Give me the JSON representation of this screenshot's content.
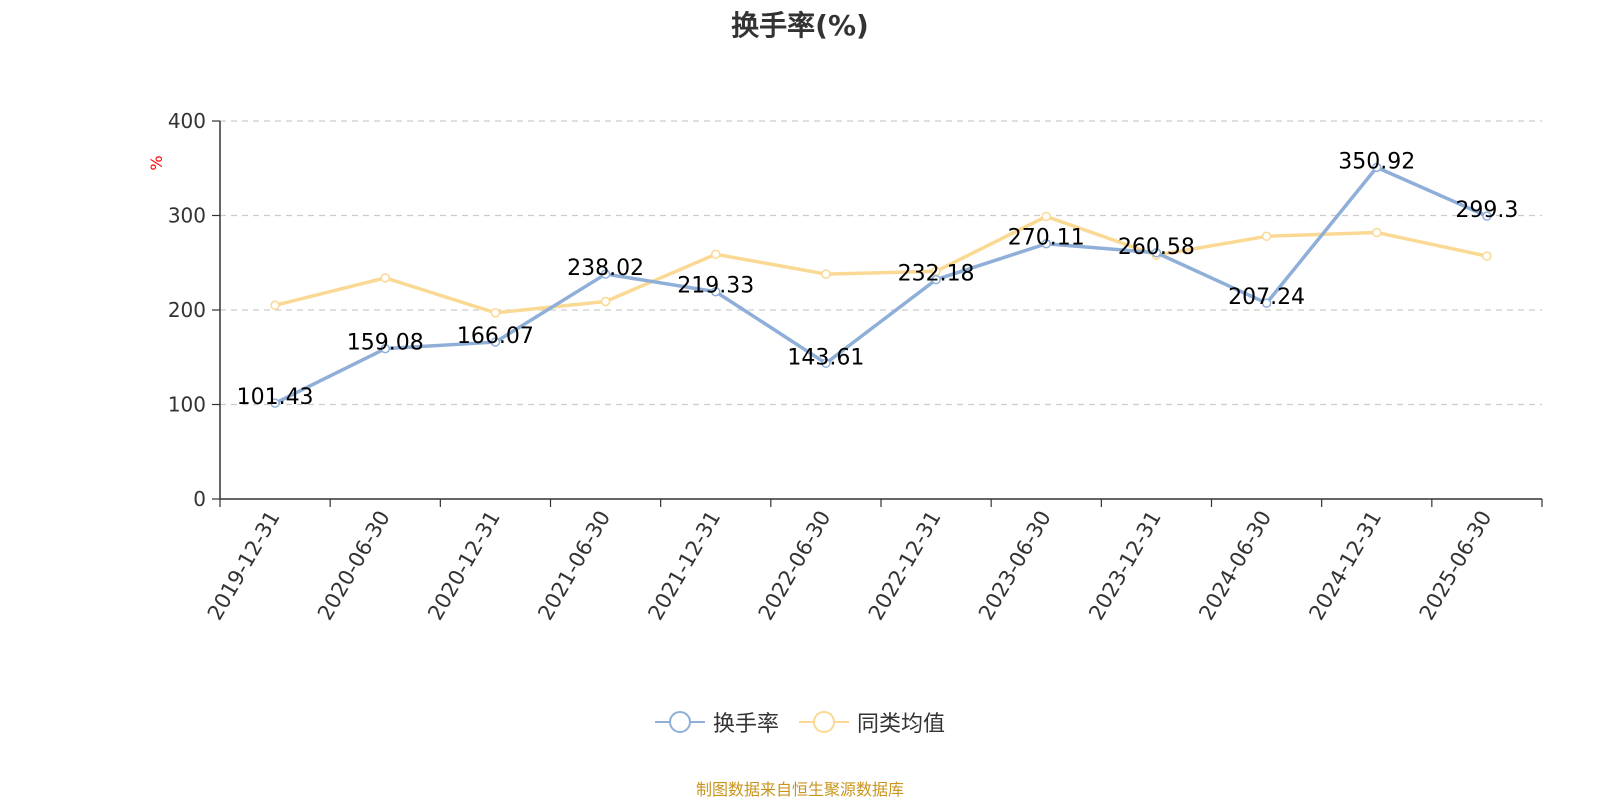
{
  "title": "换手率(%)",
  "source_note": "制图数据来自恒生聚源数据库",
  "colors": {
    "turnover": "#8FAFD9",
    "peer_avg": "#FAD994",
    "unit_label": "#FF0000",
    "source": "#C8961E",
    "grid": "#CCCCCC",
    "axis": "#333333"
  },
  "chart_data": {
    "type": "line",
    "title": "换手率(%)",
    "ylabel": "%",
    "xlabel": "",
    "ylim": [
      0,
      400
    ],
    "yticks": [
      0,
      100,
      200,
      300,
      400
    ],
    "grid": "horizontal dashed",
    "legend_position": "bottom-center",
    "categories": [
      "2019-12-31",
      "2020-06-30",
      "2020-12-31",
      "2021-06-30",
      "2021-12-31",
      "2022-06-30",
      "2022-12-31",
      "2023-06-30",
      "2023-12-31",
      "2024-06-30",
      "2024-12-31",
      "2025-06-30"
    ],
    "series": [
      {
        "name": "换手率",
        "values": [
          101.43,
          159.08,
          166.07,
          238.02,
          219.33,
          143.61,
          232.18,
          270.11,
          260.58,
          207.24,
          350.92,
          299.3
        ],
        "labels": [
          "101.43",
          "159.08",
          "166.07",
          "238.02",
          "219.33",
          "143.61",
          "232.18",
          "270.11",
          "260.58",
          "207.24",
          "350.92",
          "299.3"
        ]
      },
      {
        "name": "同类均值",
        "values": [
          205,
          234,
          197,
          209,
          259,
          238,
          241,
          299,
          258,
          278,
          282,
          257
        ]
      }
    ]
  }
}
